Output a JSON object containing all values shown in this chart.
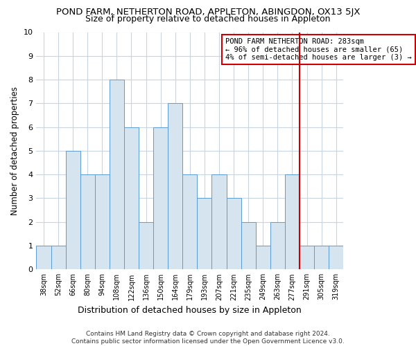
{
  "title": "POND FARM, NETHERTON ROAD, APPLETON, ABINGDON, OX13 5JX",
  "subtitle": "Size of property relative to detached houses in Appleton",
  "xlabel": "Distribution of detached houses by size in Appleton",
  "ylabel": "Number of detached properties",
  "categories": [
    "38sqm",
    "52sqm",
    "66sqm",
    "80sqm",
    "94sqm",
    "108sqm",
    "122sqm",
    "136sqm",
    "150sqm",
    "164sqm",
    "179sqm",
    "193sqm",
    "207sqm",
    "221sqm",
    "235sqm",
    "249sqm",
    "263sqm",
    "277sqm",
    "291sqm",
    "305sqm",
    "319sqm"
  ],
  "values": [
    1,
    1,
    5,
    4,
    4,
    8,
    6,
    2,
    6,
    7,
    4,
    3,
    4,
    3,
    2,
    1,
    2,
    4,
    1,
    1,
    1
  ],
  "bar_color": "#d6e4f0",
  "bar_edge_color": "#5b9bd5",
  "ylim": [
    0,
    10
  ],
  "yticks": [
    0,
    1,
    2,
    3,
    4,
    5,
    6,
    7,
    8,
    9,
    10
  ],
  "vline_color": "#cc0000",
  "vline_bar_index": 17,
  "annotation_text": "POND FARM NETHERTON ROAD: 283sqm\n← 96% of detached houses are smaller (65)\n4% of semi-detached houses are larger (3) →",
  "annotation_box_color": "#cc0000",
  "footer_line1": "Contains HM Land Registry data © Crown copyright and database right 2024.",
  "footer_line2": "Contains public sector information licensed under the Open Government Licence v3.0.",
  "title_fontsize": 9.5,
  "subtitle_fontsize": 9,
  "footer_fontsize": 6.5,
  "bar_width": 1.0,
  "background_color": "#ffffff",
  "grid_color": "#c8d4e0",
  "ann_fontsize": 7.5,
  "ylabel_fontsize": 8.5,
  "xlabel_fontsize": 9
}
